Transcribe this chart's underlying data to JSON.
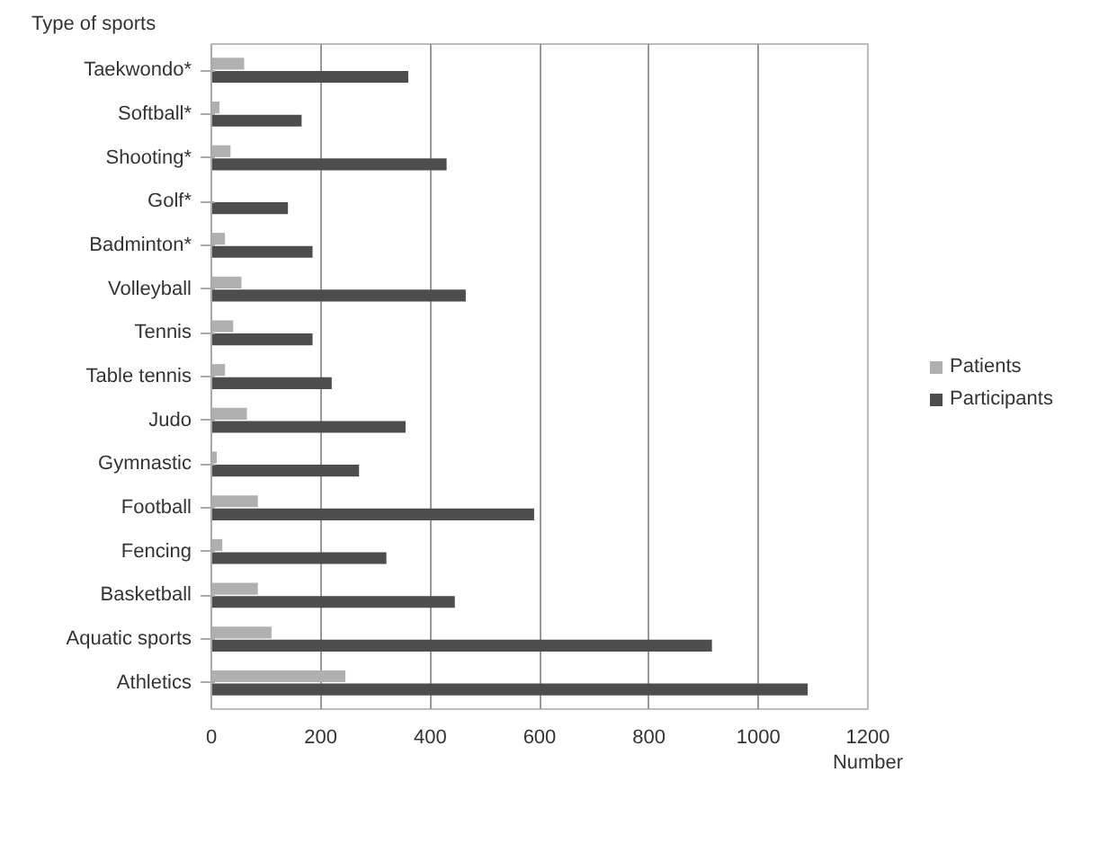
{
  "chart_data": {
    "type": "bar",
    "orientation": "horizontal",
    "ylabel": "Type of sports",
    "xlabel": "Number",
    "categories": [
      "Taekwondo*",
      "Softball*",
      "Shooting*",
      "Golf*",
      "Badminton*",
      "Volleyball",
      "Tennis",
      "Table tennis",
      "Judo",
      "Gymnastic",
      "Football",
      "Fencing",
      "Basketball",
      "Aquatic sports",
      "Athletics"
    ],
    "series": [
      {
        "name": "Patients",
        "color": "#b0b0b0",
        "values": [
          60,
          15,
          35,
          null,
          25,
          55,
          40,
          25,
          65,
          10,
          85,
          20,
          85,
          110,
          245
        ]
      },
      {
        "name": "Participants",
        "color": "#4d4d4d",
        "values": [
          360,
          165,
          430,
          140,
          185,
          465,
          185,
          220,
          355,
          270,
          590,
          320,
          445,
          915,
          1090
        ]
      }
    ],
    "xlim": [
      0,
      1200
    ],
    "xticks": [
      0,
      200,
      400,
      600,
      800,
      1000,
      1200
    ],
    "grid": "x",
    "legend": "right"
  }
}
